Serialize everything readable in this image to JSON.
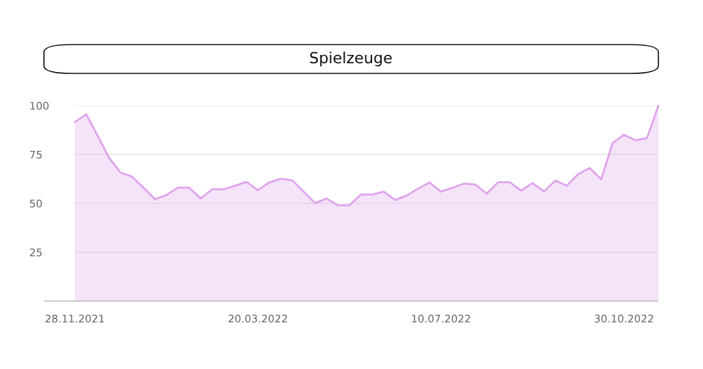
{
  "chart_data": {
    "type": "area",
    "title": "Spielzeuge",
    "x": [
      "2021-11-28",
      "2021-12-05",
      "2021-12-12",
      "2021-12-19",
      "2021-12-26",
      "2022-01-02",
      "2022-01-09",
      "2022-01-16",
      "2022-01-23",
      "2022-01-30",
      "2022-02-06",
      "2022-02-13",
      "2022-02-20",
      "2022-02-27",
      "2022-03-06",
      "2022-03-13",
      "2022-03-20",
      "2022-03-27",
      "2022-04-03",
      "2022-04-10",
      "2022-04-17",
      "2022-04-24",
      "2022-05-01",
      "2022-05-08",
      "2022-05-15",
      "2022-05-22",
      "2022-05-29",
      "2022-06-05",
      "2022-06-12",
      "2022-06-19",
      "2022-06-26",
      "2022-07-03",
      "2022-07-10",
      "2022-07-17",
      "2022-07-24",
      "2022-07-31",
      "2022-08-07",
      "2022-08-14",
      "2022-08-21",
      "2022-08-28",
      "2022-09-04",
      "2022-09-11",
      "2022-09-18",
      "2022-09-25",
      "2022-10-02",
      "2022-10-09",
      "2022-10-16",
      "2022-10-23",
      "2022-10-30",
      "2022-11-06",
      "2022-11-13",
      "2022-11-20"
    ],
    "series": [
      {
        "color": "#dea3ec",
        "values": [
          91.5,
          95.6,
          84.5,
          73.3,
          65.7,
          63.7,
          58,
          52.2,
          54.2,
          58,
          58,
          52.5,
          57.2,
          57.2,
          59,
          61,
          56.8,
          60.7,
          62.6,
          61.8,
          56,
          50.1,
          52.5,
          49,
          49,
          54.5,
          54.5,
          56,
          51.7,
          54,
          57.5,
          60.7,
          56,
          58,
          60.1,
          59.6,
          55,
          60.8,
          60.8,
          56.5,
          60.4,
          56.1,
          61.7,
          59,
          65,
          68.1,
          62.3,
          80.8,
          85.1,
          82.3,
          83.3,
          100
        ]
      }
    ],
    "xlim": [
      "2021-11-28",
      "2022-11-20"
    ],
    "xticks": [
      {
        "value": "2021-11-28",
        "label": "28.11.2021"
      },
      {
        "value": "2022-03-20",
        "label": "20.03.2022"
      },
      {
        "value": "2022-07-10",
        "label": "10.07.2022"
      },
      {
        "value": "2022-10-30",
        "label": "30.10.2022"
      }
    ],
    "ylim": [
      0,
      100
    ],
    "yticks": [
      25,
      50,
      75,
      100
    ],
    "grid": "y"
  }
}
